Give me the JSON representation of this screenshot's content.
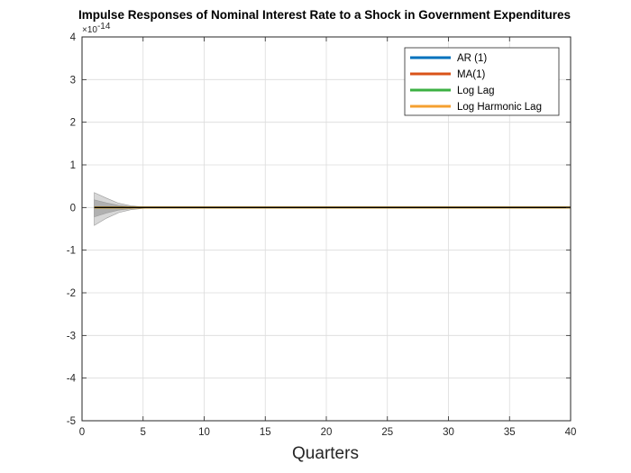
{
  "chart_data": {
    "type": "line",
    "title": "Impulse Responses of Nominal Interest Rate to a Shock in Government Expenditures",
    "xlabel": "Quarters",
    "ylabel": "",
    "y_exponent_base": "10",
    "y_exponent_power": "-14",
    "xlim": [
      0,
      40
    ],
    "ylim": [
      -5,
      4
    ],
    "xticks": [
      0,
      5,
      10,
      15,
      20,
      25,
      30,
      35,
      40
    ],
    "yticks": [
      -5,
      -4,
      -3,
      -2,
      -1,
      0,
      1,
      2,
      3,
      4
    ],
    "grid": true,
    "legend_position": "top-right",
    "x": [
      1,
      2,
      3,
      4,
      5,
      6,
      7,
      8,
      9,
      10,
      11,
      12,
      13,
      14,
      15,
      16,
      17,
      18,
      19,
      20,
      21,
      22,
      23,
      24,
      25,
      26,
      27,
      28,
      29,
      30,
      31,
      32,
      33,
      34,
      35,
      36,
      37,
      38,
      39,
      40
    ],
    "series": [
      {
        "name": "AR (1)",
        "color": "#0072BD",
        "values": [
          0,
          0,
          0,
          0,
          0,
          0,
          0,
          0,
          0,
          0,
          0,
          0,
          0,
          0,
          0,
          0,
          0,
          0,
          0,
          0,
          0,
          0,
          0,
          0,
          0,
          0,
          0,
          0,
          0,
          0,
          0,
          0,
          0,
          0,
          0,
          0,
          0,
          0,
          0,
          0
        ]
      },
      {
        "name": "MA(1)",
        "color": "#D95319",
        "values": [
          0,
          0,
          0,
          0,
          0,
          0,
          0,
          0,
          0,
          0,
          0,
          0,
          0,
          0,
          0,
          0,
          0,
          0,
          0,
          0,
          0,
          0,
          0,
          0,
          0,
          0,
          0,
          0,
          0,
          0,
          0,
          0,
          0,
          0,
          0,
          0,
          0,
          0,
          0,
          0
        ]
      },
      {
        "name": "Log Lag",
        "color": "#3CB043",
        "values": [
          0,
          0,
          0,
          0,
          0,
          0,
          0,
          0,
          0,
          0,
          0,
          0,
          0,
          0,
          0,
          0,
          0,
          0,
          0,
          0,
          0,
          0,
          0,
          0,
          0,
          0,
          0,
          0,
          0,
          0,
          0,
          0,
          0,
          0,
          0,
          0,
          0,
          0,
          0,
          0
        ]
      },
      {
        "name": "Log Harmonic Lag",
        "color": "#F5A030",
        "values": [
          0,
          0,
          0,
          0,
          0,
          0,
          0,
          0,
          0,
          0,
          0,
          0,
          0,
          0,
          0,
          0,
          0,
          0,
          0,
          0,
          0,
          0,
          0,
          0,
          0,
          0,
          0,
          0,
          0,
          0,
          0,
          0,
          0,
          0,
          0,
          0,
          0,
          0,
          0,
          0
        ]
      }
    ],
    "confidence_bands": [
      {
        "x": [
          1,
          2,
          3,
          4,
          5,
          6,
          8,
          40
        ],
        "upper": [
          0.35,
          0.22,
          0.1,
          0.04,
          0.015,
          0.005,
          0.001,
          0
        ],
        "lower": [
          -0.42,
          -0.25,
          -0.12,
          -0.05,
          -0.02,
          -0.006,
          -0.001,
          0
        ]
      },
      {
        "x": [
          1,
          2,
          3,
          4,
          5,
          6,
          8,
          40
        ],
        "upper": [
          0.18,
          0.11,
          0.05,
          0.02,
          0.008,
          0.003,
          0.0005,
          0
        ],
        "lower": [
          -0.22,
          -0.13,
          -0.06,
          -0.025,
          -0.01,
          -0.003,
          -0.0005,
          0
        ]
      }
    ]
  }
}
